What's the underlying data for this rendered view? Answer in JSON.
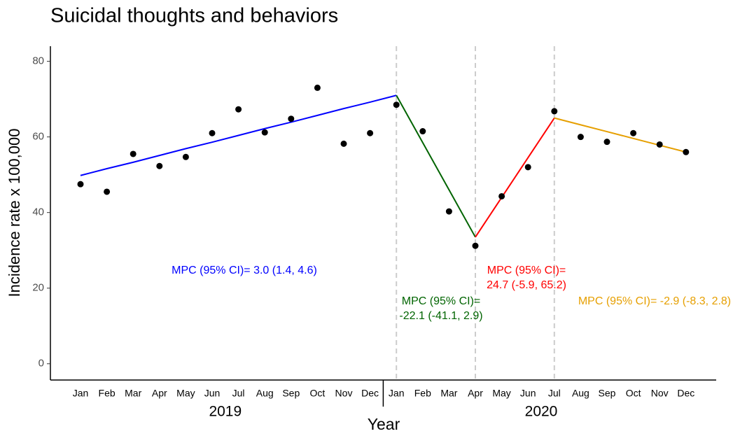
{
  "chart_data": {
    "type": "line",
    "title": "Suicidal thoughts and behaviors",
    "x_label": "Year",
    "y_label": "Incidence rate x 100,000",
    "categories": [
      "Jan",
      "Feb",
      "Mar",
      "Apr",
      "May",
      "Jun",
      "Jul",
      "Aug",
      "Sep",
      "Oct",
      "Nov",
      "Dec",
      "Jan",
      "Feb",
      "Mar",
      "Apr",
      "May",
      "Jun",
      "Jul",
      "Aug",
      "Sep",
      "Oct",
      "Nov",
      "Dec"
    ],
    "groups": [
      "2019",
      "2020"
    ],
    "points": {
      "color": "#000000",
      "values": [
        47.5,
        45.5,
        55.5,
        52.3,
        54.7,
        61.0,
        67.3,
        61.2,
        64.8,
        73.0,
        58.2,
        61.0,
        68.5,
        61.5,
        40.3,
        31.2,
        44.3,
        52.0,
        66.8,
        60.0,
        58.7,
        61.0,
        58.0,
        56.0
      ]
    },
    "series": [
      {
        "color": "#0000ff",
        "values": [
          49.8,
          51.6,
          53.3,
          55.1,
          56.9,
          58.6,
          60.4,
          62.2,
          63.9,
          65.7,
          67.5,
          69.2,
          71.0,
          null,
          null,
          null,
          null,
          null,
          null,
          null,
          null,
          null,
          null,
          null
        ]
      },
      {
        "color": "#006400",
        "values": [
          null,
          null,
          null,
          null,
          null,
          null,
          null,
          null,
          null,
          null,
          null,
          null,
          71.0,
          58.5,
          46.0,
          33.5,
          null,
          null,
          null,
          null,
          null,
          null,
          null,
          null
        ]
      },
      {
        "color": "#ff0000",
        "values": [
          null,
          null,
          null,
          null,
          null,
          null,
          null,
          null,
          null,
          null,
          null,
          null,
          null,
          null,
          null,
          33.5,
          44.0,
          54.5,
          65.0,
          null,
          null,
          null,
          null,
          null
        ]
      },
      {
        "color": "#e69f00",
        "values": [
          null,
          null,
          null,
          null,
          null,
          null,
          null,
          null,
          null,
          null,
          null,
          null,
          null,
          null,
          null,
          null,
          null,
          null,
          65.0,
          63.2,
          61.4,
          59.6,
          57.8,
          56.0
        ]
      }
    ],
    "annotations": [
      {
        "color": "#0000ff",
        "lines": [
          "MPC (95% CI)= 3.0 (1.4, 4.6)"
        ]
      },
      {
        "color": "#006400",
        "lines": [
          "MPC (95% CI)=",
          "-22.1 (-41.1, 2.9)"
        ]
      },
      {
        "color": "#ff0000",
        "lines": [
          "MPC (95% CI)=",
          "24.7 (-5.9, 65.2)"
        ]
      },
      {
        "color": "#e69f00",
        "lines": [
          "MPC (95% CI)= -2.9 (-8.3, 2.8)"
        ]
      }
    ],
    "ylim": [
      -4.3,
      84
    ],
    "yticks": [
      0,
      20,
      40,
      60,
      80
    ],
    "grid": false
  }
}
